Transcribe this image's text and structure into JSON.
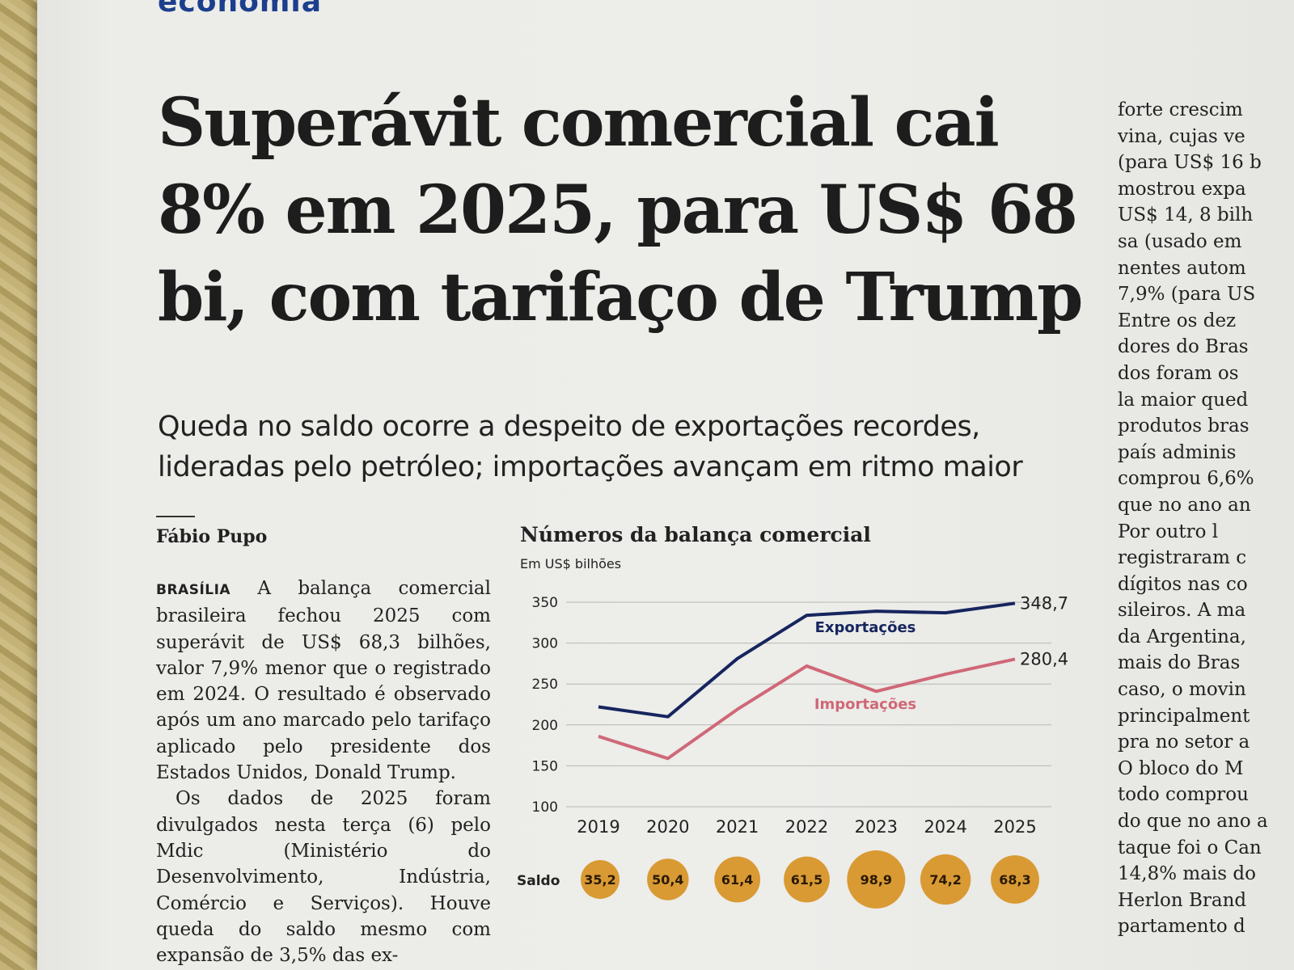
{
  "section": "economia",
  "headline": "Superávit comercial cai 8% em 2025, para US$ 68 bi, com tarifaço de Trump",
  "subhead": "Queda no saldo ocorre a despeito de exportações recordes, lideradas pelo petróleo; importações avançam em ritmo maior",
  "byline": "Fábio Pupo",
  "article": {
    "dateline": "BRASÍLIA",
    "p1": "A balança comercial brasileira fechou 2025 com superávit de US$ 68,3 bilhões, valor 7,9% menor que o registrado em 2024. O resultado é observado após um ano marcado pelo tarifaço aplicado pelo presidente dos Estados Unidos, Donald Trump.",
    "p2": "Os dados de 2025 foram divulgados nesta terça (6) pelo Mdic (Ministério do Desenvolvimento, Indústria, Comércio e Serviços). Houve queda do saldo mesmo com expansão de 3,5% das ex-"
  },
  "right_column_lines": [
    "forte crescim",
    "vina, cujas ve",
    "(para US$ 16 b",
    "mostrou expa",
    "US$ 14, 8 bilh",
    "sa (usado em",
    "nentes autom",
    "7,9% (para US",
    "Entre os dez",
    "dores do Bras",
    "dos foram os",
    "la maior qued",
    "produtos bras",
    "país adminis",
    "comprou 6,6%",
    "que no ano an",
    "Por outro l",
    "registraram c",
    "dígitos nas co",
    "sileiros. A ma",
    "da Argentina,",
    "mais do Bras",
    "caso, o movin",
    "principalment",
    "pra no setor a",
    "O bloco do M",
    "todo comprou",
    "do que no ano a",
    "taque foi o Can",
    "14,8% mais do",
    "Herlon Brand",
    "partamento d"
  ],
  "chart_data": {
    "type": "line",
    "title": "Números da balança comercial",
    "subtitle": "Em US$ bilhões",
    "x": [
      "2019",
      "2020",
      "2021",
      "2022",
      "2023",
      "2024",
      "2025"
    ],
    "ylim": [
      100,
      350
    ],
    "yticks": [
      "350",
      "300",
      "250",
      "200",
      "150",
      "100"
    ],
    "grid": true,
    "series": [
      {
        "name": "Exportações",
        "color": "#16255e",
        "values": [
          222,
          210,
          281,
          334,
          339,
          337,
          348.7
        ],
        "end_label": "348,7"
      },
      {
        "name": "Importações",
        "color": "#cf6877",
        "values": [
          186,
          159,
          219,
          272,
          241,
          262,
          280.4
        ],
        "end_label": "280,4"
      }
    ],
    "saldo": {
      "label": "Saldo",
      "color": "#d99a33",
      "values": [
        35.2,
        50.4,
        61.4,
        61.5,
        98.9,
        74.2,
        68.3
      ],
      "labels": [
        "35,2",
        "50,4",
        "61,4",
        "61,5",
        "98,9",
        "74,2",
        "68,3"
      ]
    }
  }
}
